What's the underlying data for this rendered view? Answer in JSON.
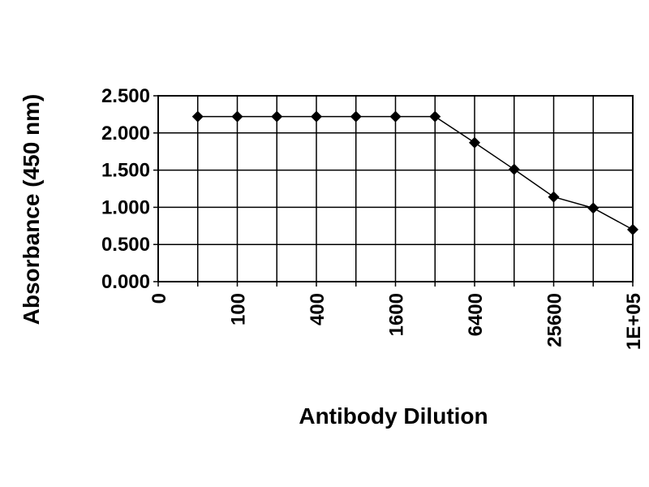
{
  "chart_data": {
    "type": "line",
    "x_label": "Antibody Dilution",
    "y_label": "Absorbance (450 nm)",
    "categories": [
      "0",
      null,
      "100",
      null,
      "400",
      null,
      "1600",
      null,
      "6400",
      null,
      "25600",
      null,
      "1E+05"
    ],
    "series": [
      {
        "name": "Absorbance",
        "color": "#000000",
        "values": [
          null,
          2.22,
          2.22,
          2.22,
          2.22,
          2.22,
          2.22,
          2.22,
          1.87,
          1.51,
          1.14,
          0.99,
          0.7
        ]
      }
    ],
    "ylim": [
      0,
      2.5
    ],
    "yticks": [
      {
        "value": 0,
        "label": "0.000"
      },
      {
        "value": 0.5,
        "label": "0.500"
      },
      {
        "value": 1,
        "label": "1.000"
      },
      {
        "value": 1.5,
        "label": "1.500"
      },
      {
        "value": 2,
        "label": "2.000"
      },
      {
        "value": 2.5,
        "label": "2.500"
      }
    ],
    "grid": true
  }
}
